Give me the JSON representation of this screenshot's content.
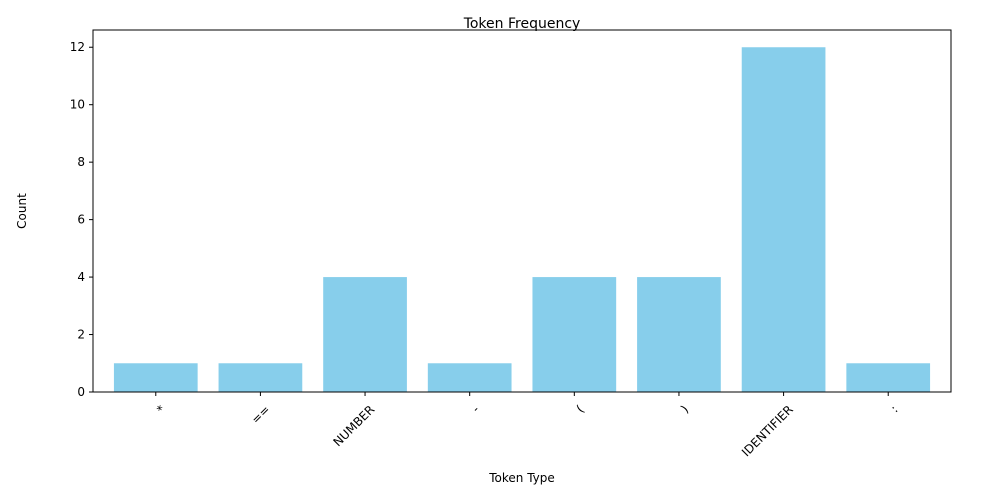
{
  "chart_data": {
    "type": "bar",
    "title": "Token Frequency",
    "xlabel": "Token Type",
    "ylabel": "Count",
    "categories": [
      "*",
      "==",
      "NUMBER",
      "-",
      "(",
      ")",
      "IDENTIFIER",
      ":"
    ],
    "values": [
      1,
      1,
      4,
      1,
      4,
      4,
      12,
      1
    ],
    "ylim": [
      0,
      12.6
    ],
    "yticks": [
      0,
      2,
      4,
      6,
      8,
      10,
      12
    ],
    "xtick_rotation": 45,
    "grid": false,
    "legend": "none",
    "colors": {
      "bar": "#87ceeb",
      "axis": "#000000",
      "background": "#ffffff"
    }
  }
}
